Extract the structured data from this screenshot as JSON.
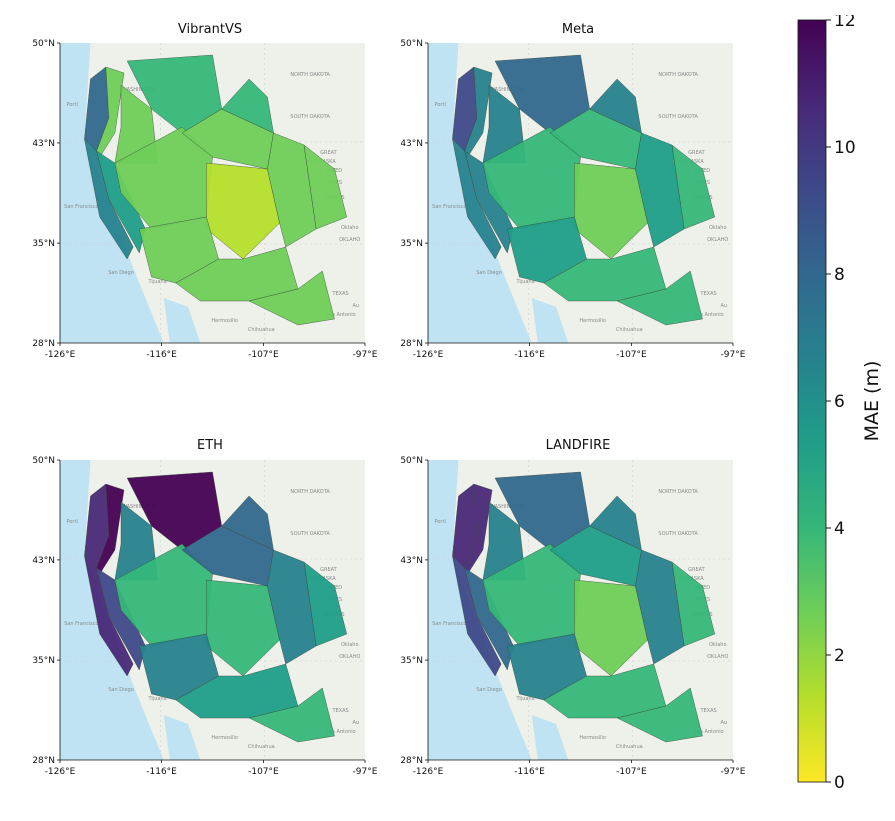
{
  "panels": [
    {
      "title": "VibrantVS",
      "scheme": "low"
    },
    {
      "title": "Meta",
      "scheme": "mid"
    },
    {
      "title": "ETH",
      "scheme": "high"
    },
    {
      "title": "LANDFIRE",
      "scheme": "mid2"
    }
  ],
  "axes": {
    "lat_ticks": [
      "50°N",
      "43°N",
      "35°N",
      "28°N"
    ],
    "lon_ticks": [
      "-126°E",
      "-116°E",
      "-107°E",
      "-97°E"
    ]
  },
  "basemap_labels": [
    "WASHINGTON",
    "NORTH DAKOTA",
    "SOUTH DAKOTA",
    "GREAT",
    "NEBRASKA",
    "NITED",
    "TATES",
    "KANSAS",
    "Oklaho",
    "OKLAHO",
    "TEXAS",
    "San Antonio",
    "Chihuahua",
    "Hermosillo",
    "Tijuana",
    "San Diego",
    "San Francisco",
    "Portl",
    "Au"
  ],
  "colorbar": {
    "label": "MAE (m)",
    "ticks": [
      "0",
      "2",
      "4",
      "6",
      "8",
      "10",
      "12"
    ],
    "min": 0,
    "max": 12,
    "colors": [
      "#fde725",
      "#b5de2b",
      "#6ece58",
      "#35b779",
      "#1f9e89",
      "#26828e",
      "#31688e",
      "#3e4989",
      "#482878",
      "#440154"
    ]
  }
}
